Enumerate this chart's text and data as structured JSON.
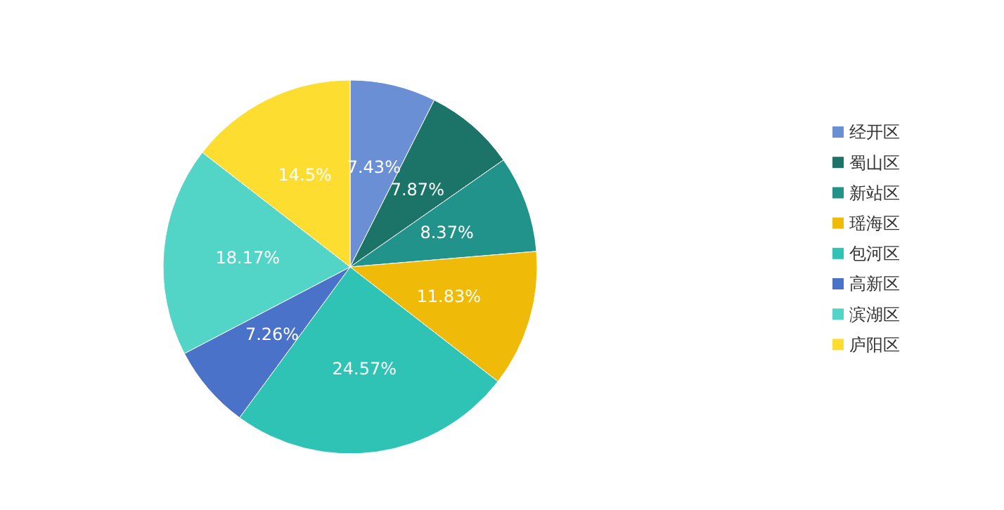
{
  "chart_data": {
    "type": "pie",
    "categories": [
      "经开区",
      "蜀山区",
      "新站区",
      "瑶海区",
      "包河区",
      "高新区",
      "滨湖区",
      "庐阳区"
    ],
    "values": [
      7.43,
      7.87,
      8.37,
      11.83,
      24.57,
      7.26,
      18.17,
      14.5
    ],
    "value_labels": [
      "7.43%",
      "7.87%",
      "8.37%",
      "11.83%",
      "24.57%",
      "7.26%",
      "18.17%",
      "14.5%"
    ],
    "colors": [
      "#6b8fd4",
      "#1c7469",
      "#22938a",
      "#f0bb08",
      "#2ec3b5",
      "#4a72c9",
      "#52d4c7",
      "#fdde30"
    ],
    "legend": "right"
  }
}
